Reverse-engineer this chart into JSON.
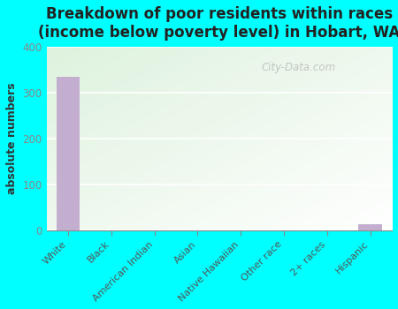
{
  "title": "Breakdown of poor residents within races\n(income below poverty level) in Hobart, WA",
  "categories": [
    "White",
    "Black",
    "American Indian",
    "Asian",
    "Native Hawaiian",
    "Other race",
    "2+ races",
    "Hispanic"
  ],
  "values": [
    335,
    0,
    0,
    0,
    0,
    0,
    0,
    13
  ],
  "bar_color": "#c4aed0",
  "ylabel": "absolute numbers",
  "ylim": [
    0,
    400
  ],
  "yticks": [
    0,
    100,
    200,
    300,
    400
  ],
  "background_color": "#00ffff",
  "plot_bg_top_left": "#ddeedd",
  "plot_bg_bottom_right": "#f8fff8",
  "grid_color": "#e8e8e8",
  "title_fontsize": 12,
  "watermark": "City-Data.com",
  "tick_color": "#888888",
  "label_color": "#555555"
}
